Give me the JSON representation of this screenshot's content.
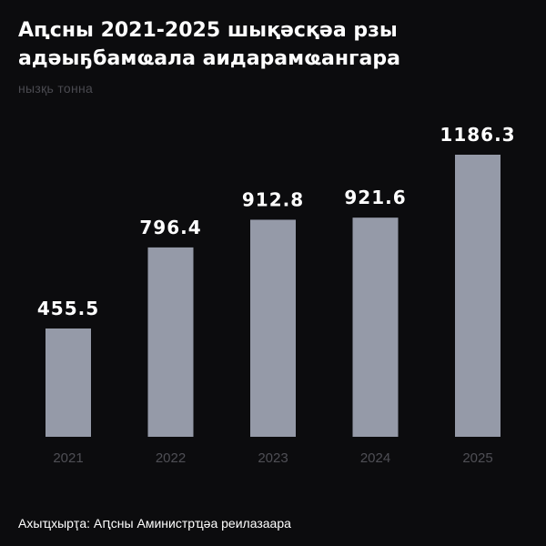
{
  "header": {
    "title_line1": "Аԥсны 2021-2025 шықәсқәа рзы",
    "title_line2": "адәыҕбамҩала аидарамҩангара",
    "unit": "нызқь тонна"
  },
  "footer": {
    "source": "Ахыҵхырҭа: Аԥсны Аминистрҵәа реилазаара"
  },
  "colors": {
    "background": "#0c0c0e",
    "bar": "#959aa8",
    "value_text": "#ffffff",
    "tick_text": "#4f4f55"
  },
  "chart_data": {
    "type": "bar",
    "title": "Аԥсны 2021-2025 шықәсқәа рзы адәыҕбамҩала аидарамҩангара",
    "ylabel": "нызқь тонна",
    "xlabel": "",
    "categories": [
      "2021",
      "2022",
      "2023",
      "2024",
      "2025"
    ],
    "values": [
      455.5,
      796.4,
      912.8,
      921.6,
      1186.3
    ],
    "value_labels": [
      "455.5",
      "796.4",
      "912.8",
      "921.6",
      "1186.3"
    ],
    "ylim": [
      0,
      1186.3
    ],
    "grid": false,
    "legend": "none"
  }
}
